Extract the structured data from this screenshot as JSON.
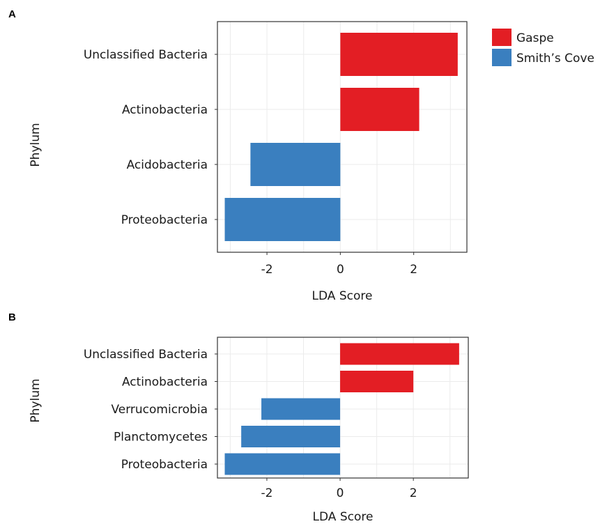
{
  "colors": {
    "Gaspe": "#e31e24",
    "Smith's Cove": "#3a7fbf"
  },
  "legend": {
    "entries": [
      {
        "label": "Gaspe",
        "color": "#e31e24"
      },
      {
        "label": "Smith’s Cove",
        "color": "#3a7fbf"
      }
    ],
    "placement": "top-right"
  },
  "chart_data": [
    {
      "panel": "A",
      "type": "bar",
      "orientation": "horizontal",
      "categories": [
        "Unclassified Bacteria",
        "Actinobacteria",
        "Acidobacteria",
        "Proteobacteria"
      ],
      "values": [
        3.2,
        2.15,
        -2.45,
        -3.15
      ],
      "groups": [
        "Gaspe",
        "Gaspe",
        "Smith's Cove",
        "Smith's Cove"
      ],
      "xlabel": "LDA Score",
      "ylabel": "Phylum",
      "xticks": [
        -2,
        0,
        2
      ],
      "xlim": [
        -3.35,
        3.45
      ],
      "grid": true
    },
    {
      "panel": "B",
      "type": "bar",
      "orientation": "horizontal",
      "categories": [
        "Unclassified Bacteria",
        "Actinobacteria",
        "Verrucomicrobia",
        "Planctomycetes",
        "Proteobacteria"
      ],
      "values": [
        3.25,
        2.0,
        -2.15,
        -2.7,
        -3.15
      ],
      "groups": [
        "Gaspe",
        "Gaspe",
        "Smith's Cove",
        "Smith's Cove",
        "Smith's Cove"
      ],
      "xlabel": "LDA Score",
      "ylabel": "Phylum",
      "xticks": [
        -2,
        0,
        2
      ],
      "xlim": [
        -3.35,
        3.5
      ],
      "grid": true
    }
  ]
}
